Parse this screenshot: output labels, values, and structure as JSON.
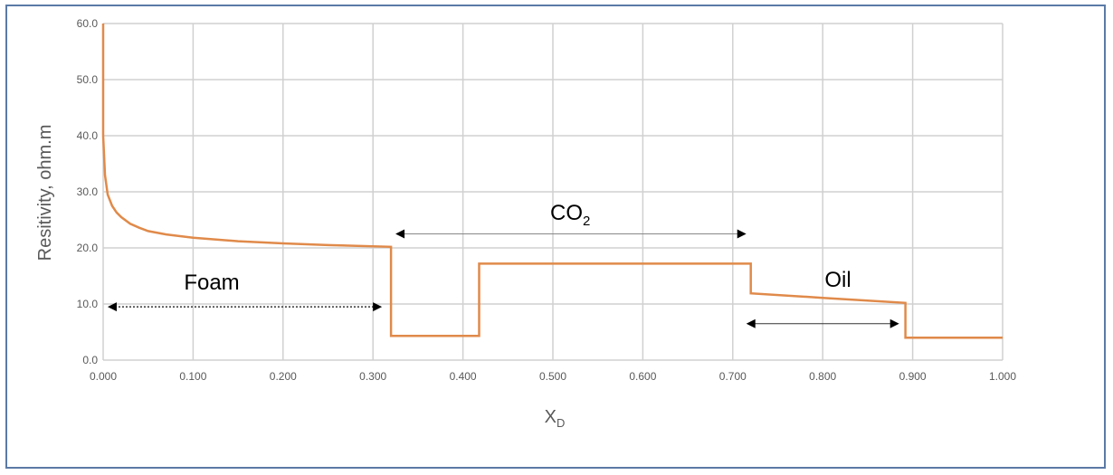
{
  "chart_data": {
    "type": "line",
    "title": "",
    "xlabel": {
      "main": "X",
      "sub": "D"
    },
    "ylabel": "Resitivity, ohm.m",
    "xlim": [
      0,
      1
    ],
    "ylim": [
      0,
      60
    ],
    "grid": true,
    "x_ticks": [
      "0.000",
      "0.100",
      "0.200",
      "0.300",
      "0.400",
      "0.500",
      "0.600",
      "0.700",
      "0.800",
      "0.900",
      "1.000"
    ],
    "y_ticks": [
      "0.0",
      "10.0",
      "20.0",
      "30.0",
      "40.0",
      "50.0",
      "60.0"
    ],
    "line_color": "#e08a4a",
    "series": [
      {
        "x": [
          0.0,
          0.0,
          0.002,
          0.005,
          0.01,
          0.015,
          0.02,
          0.03,
          0.04,
          0.05,
          0.07,
          0.1,
          0.15,
          0.2,
          0.25,
          0.32,
          0.32,
          0.418,
          0.418,
          0.72,
          0.72,
          0.8,
          0.892,
          0.892,
          1.0
        ],
        "y": [
          60.0,
          40.0,
          33.0,
          29.5,
          27.5,
          26.3,
          25.5,
          24.3,
          23.6,
          23.0,
          22.4,
          21.8,
          21.2,
          20.8,
          20.5,
          20.2,
          4.3,
          4.3,
          17.2,
          17.2,
          11.9,
          11.1,
          10.2,
          4.0,
          4.0
        ]
      }
    ],
    "annotations": {
      "foam": {
        "label": "Foam",
        "from": 0.005,
        "to": 0.31,
        "y": 9.5
      },
      "co2": {
        "label": "CO",
        "sub": "2",
        "from": 0.325,
        "to": 0.715,
        "y": 22.5
      },
      "oil": {
        "label": "Oil",
        "from": 0.715,
        "to": 0.885,
        "y": 6.5
      }
    }
  }
}
